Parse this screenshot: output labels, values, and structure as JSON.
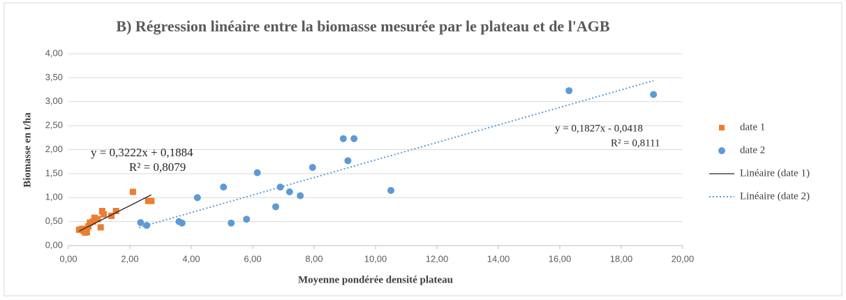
{
  "chart_data": {
    "type": "scatter",
    "title": "B) Régression linéaire entre la biomasse mesurée par le plateau et de l'AGB",
    "x_label": "Moyenne pondérée densité plateau",
    "y_label": "Biomasse en t/ha",
    "xlim": [
      0,
      20
    ],
    "ylim": [
      0,
      4
    ],
    "xticks": [
      {
        "value": 0,
        "label": "0,00"
      },
      {
        "value": 2,
        "label": "2,00"
      },
      {
        "value": 4,
        "label": "4,00"
      },
      {
        "value": 6,
        "label": "6,00"
      },
      {
        "value": 8,
        "label": "8,00"
      },
      {
        "value": 10,
        "label": "10,00"
      },
      {
        "value": 12,
        "label": "12,00"
      },
      {
        "value": 14,
        "label": "14,00"
      },
      {
        "value": 16,
        "label": "16,00"
      },
      {
        "value": 18,
        "label": "18,00"
      },
      {
        "value": 20,
        "label": "20,00"
      }
    ],
    "yticks": [
      {
        "value": 0,
        "label": "0,00"
      },
      {
        "value": 0.5,
        "label": "0,50"
      },
      {
        "value": 1,
        "label": "1,00"
      },
      {
        "value": 1.5,
        "label": "1,50"
      },
      {
        "value": 2,
        "label": "2,00"
      },
      {
        "value": 2.5,
        "label": "2,50"
      },
      {
        "value": 3,
        "label": "3,00"
      },
      {
        "value": 3.5,
        "label": "3,50"
      },
      {
        "value": 4,
        "label": "4,00"
      }
    ],
    "grid": true,
    "legend": "right",
    "series": [
      {
        "name": "date 1",
        "type": "scatter",
        "marker": "square",
        "color": "#ed7d31",
        "x": [
          0.35,
          0.45,
          0.5,
          0.55,
          0.6,
          0.65,
          0.7,
          0.8,
          0.85,
          0.95,
          1.05,
          1.1,
          1.15,
          1.4,
          1.55,
          2.1,
          2.6,
          2.7
        ],
        "values": [
          0.33,
          0.35,
          0.3,
          0.27,
          0.28,
          0.4,
          0.48,
          0.5,
          0.58,
          0.55,
          0.38,
          0.72,
          0.65,
          0.62,
          0.72,
          1.12,
          0.93,
          0.93
        ]
      },
      {
        "name": "date 2",
        "type": "scatter",
        "marker": "circle",
        "color": "#5b9bd5",
        "x": [
          2.35,
          2.55,
          3.6,
          3.7,
          4.2,
          5.05,
          5.3,
          5.8,
          6.15,
          6.75,
          6.9,
          7.2,
          7.55,
          7.95,
          8.95,
          9.1,
          9.3,
          10.5,
          16.3,
          19.05
        ],
        "values": [
          0.48,
          0.42,
          0.5,
          0.47,
          1.0,
          1.22,
          0.47,
          0.55,
          1.52,
          0.81,
          1.22,
          1.12,
          1.04,
          1.63,
          2.23,
          1.77,
          2.23,
          1.15,
          3.23,
          3.15
        ]
      },
      {
        "name": "Linéaire (date 1)",
        "type": "line",
        "dash": "solid",
        "color": "#262626",
        "x": [
          0.35,
          2.7
        ],
        "values": [
          0.301,
          1.058
        ]
      },
      {
        "name": "Linéaire (date 2)",
        "type": "line",
        "dash": "dotted",
        "color": "#5b9bd5",
        "x": [
          2.3,
          19.05
        ],
        "values": [
          0.378,
          3.438
        ]
      }
    ],
    "annotations": [
      {
        "lines": [
          "y = 0,3222x + 0,1884",
          "R² = 0,8079"
        ]
      },
      {
        "lines": [
          "y = 0,1827x - 0,0418",
          "R² = 0,8111"
        ]
      }
    ]
  }
}
